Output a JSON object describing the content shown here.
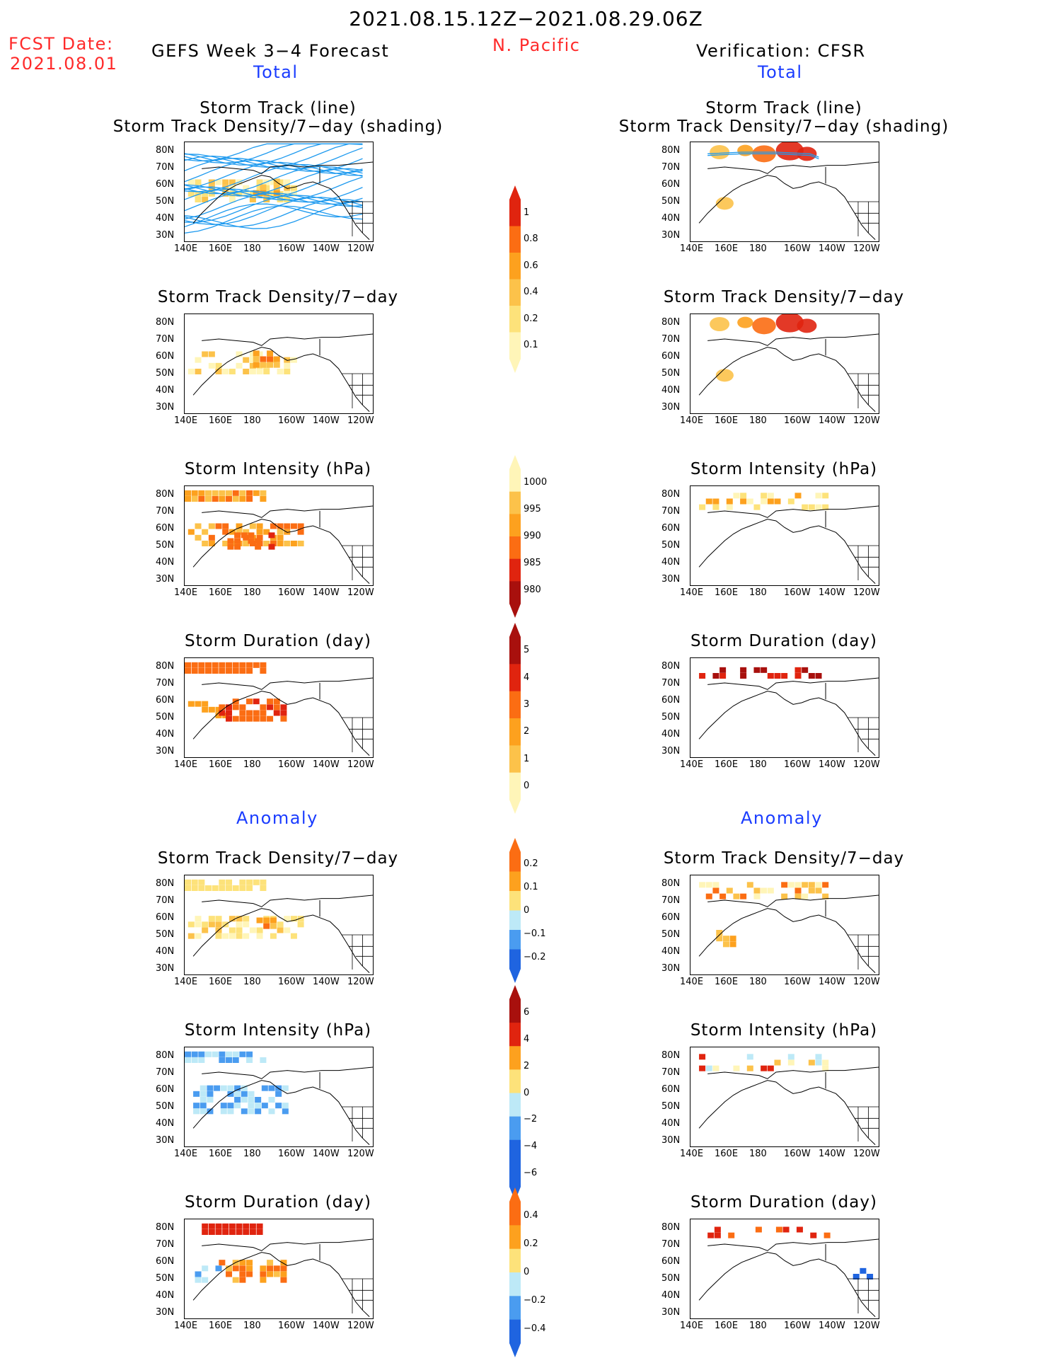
{
  "header": {
    "period": "2021.08.15.12Z−2021.08.29.06Z",
    "region": "N. Pacific",
    "fcst_label": "FCST Date:",
    "fcst_date": "2021.08.01",
    "left_title": "GEFS Week 3−4 Forecast",
    "right_title": "Verification: CFSR",
    "total_label": "Total",
    "anomaly_label": "Anomaly"
  },
  "titles": {
    "track_line": "Storm Track (line)",
    "track_shading": "Storm Track Density/7−day (shading)",
    "density": "Storm Track Density/7−day",
    "intensity": "Storm Intensity (hPa)",
    "duration": "Storm Duration (day)"
  },
  "axes": {
    "lat_labels": [
      "80N",
      "70N",
      "60N",
      "50N",
      "40N",
      "30N"
    ],
    "lon_labels": [
      "140E",
      "160E",
      "180",
      "160W",
      "140W",
      "120W"
    ]
  },
  "colorbars": {
    "density_total": [
      "1",
      "0.8",
      "0.6",
      "0.4",
      "0.2",
      "0.1"
    ],
    "intensity_total": [
      "1000",
      "995",
      "990",
      "985",
      "980"
    ],
    "duration_total": [
      "5",
      "4",
      "3",
      "2",
      "1",
      "0"
    ],
    "density_anom": [
      "0.2",
      "0.1",
      "0",
      "−0.1",
      "−0.2"
    ],
    "intensity_anom": [
      "6",
      "4",
      "2",
      "0",
      "−2",
      "−4",
      "−6"
    ],
    "duration_anom": [
      "0.4",
      "0.2",
      "0",
      "−0.2",
      "−0.4"
    ]
  },
  "colors": {
    "seq_light": "#fff5b8",
    "seq_yellow": "#fde27a",
    "seq_gold": "#fcc24a",
    "seq_orange": "#fda11e",
    "seq_darkorange": "#fb6d13",
    "seq_red": "#e0240f",
    "seq_darkred": "#a8100d",
    "anom_lightblue": "#bde9f7",
    "anom_blue": "#4a9cf0",
    "anom_darkblue": "#1f64e0",
    "track": "#1e9aef"
  }
}
